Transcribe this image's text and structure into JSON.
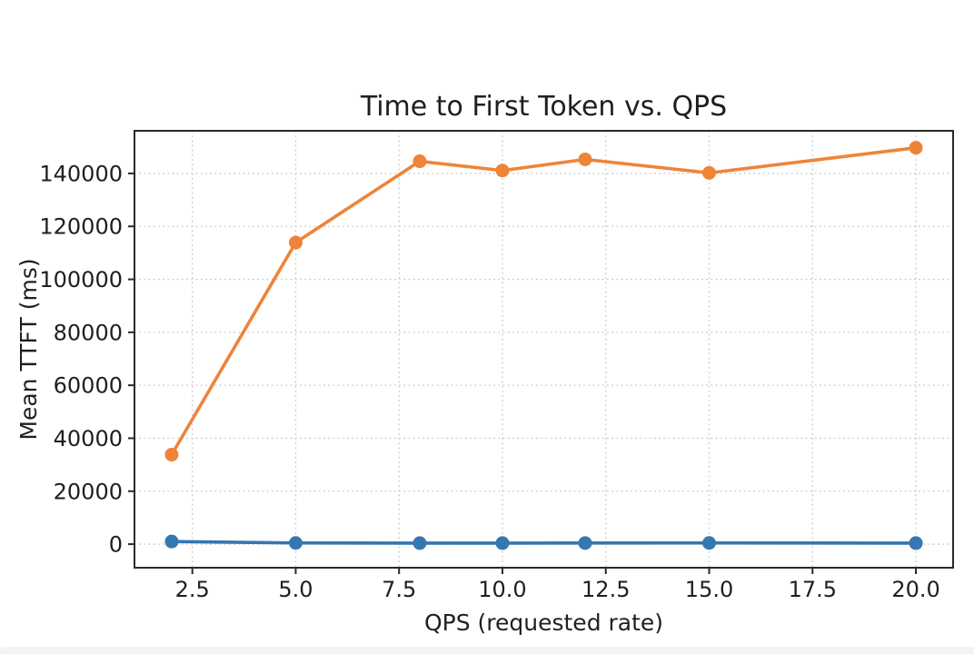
{
  "page": {
    "background": "#ffffff",
    "bottom_strip_color": "#f4f4f5"
  },
  "chart_data": {
    "type": "line",
    "title": "Time to First Token vs. QPS",
    "xlabel": "QPS (requested rate)",
    "ylabel": "Mean TTFT (ms)",
    "x": [
      2,
      5,
      8,
      10,
      12,
      15,
      20
    ],
    "series": [
      {
        "name": "series-1-blue",
        "color": "#3577b0",
        "values": [
          1000,
          450,
          400,
          400,
          420,
          450,
          400
        ]
      },
      {
        "name": "series-2-orange",
        "color": "#ee8438",
        "values": [
          33800,
          113900,
          144600,
          141100,
          145300,
          140200,
          149700
        ]
      }
    ],
    "xlim": [
      1.1,
      20.9
    ],
    "ylim": [
      -8900,
      156100
    ],
    "xticks": [
      2.5,
      5,
      7.5,
      10,
      12.5,
      15,
      17.5,
      20
    ],
    "xtick_labels": [
      "2.5",
      "5.0",
      "7.5",
      "10.0",
      "12.5",
      "15.0",
      "17.5",
      "20.0"
    ],
    "yticks": [
      0,
      20000,
      40000,
      60000,
      80000,
      100000,
      120000,
      140000
    ],
    "ytick_labels": [
      "0",
      "20000",
      "40000",
      "60000",
      "80000",
      "100000",
      "120000",
      "140000"
    ],
    "grid": true,
    "grid_style": "dotted",
    "legend": "none",
    "marker": "circle",
    "marker_radius": 7.5,
    "line_width": 3.6,
    "text_color": "#1f1f1f",
    "axis_color": "#2a2a2a",
    "grid_color": "#c9c9c9"
  }
}
